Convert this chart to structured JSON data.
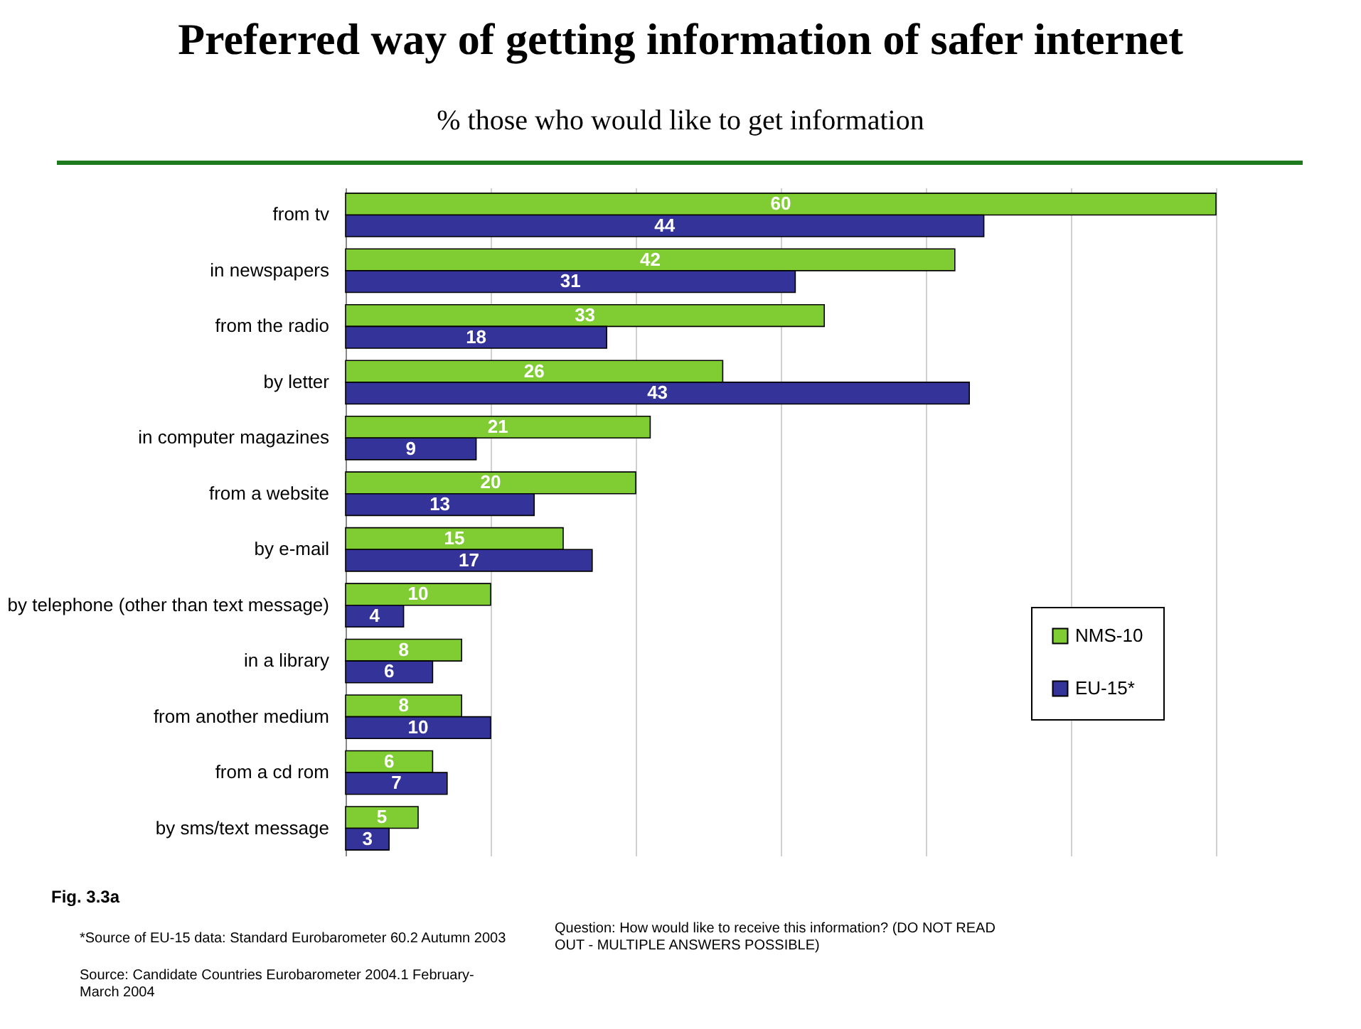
{
  "chart_data": {
    "type": "bar",
    "orientation": "horizontal",
    "title": "Preferred way of getting information of safer internet",
    "subtitle": "% those who would  like to get information",
    "categories": [
      "from tv",
      "in newspapers",
      "from the radio",
      "by letter",
      "in computer magazines",
      "from a website",
      "by e-mail",
      "by telephone (other than text message)",
      "in a library",
      "from another medium",
      "from a cd rom",
      "by sms/text message"
    ],
    "series": [
      {
        "name": "NMS-10",
        "color": "#80cc33",
        "values": [
          60,
          42,
          33,
          26,
          21,
          20,
          15,
          10,
          8,
          8,
          6,
          5
        ]
      },
      {
        "name": "EU-15*",
        "color": "#333399",
        "values": [
          44,
          31,
          18,
          43,
          9,
          13,
          17,
          4,
          6,
          10,
          7,
          3
        ]
      }
    ],
    "xlim": [
      0,
      60
    ],
    "xticks": [
      {
        "value": 0,
        "label": null
      },
      {
        "value": 10,
        "label": null
      },
      {
        "value": 20,
        "label": null
      },
      {
        "value": 30,
        "label": null
      },
      {
        "value": 40,
        "label": null
      },
      {
        "value": 50,
        "label": null
      },
      {
        "value": 60,
        "label": null
      }
    ],
    "grid": "x",
    "tick_labels": "y",
    "legend": "right",
    "data_labels": true,
    "annotations": [
      "Fig. 3.3a",
      "*Source of EU-15 data: Standard Eurobarometer 60.2 Autumn 2003",
      "Source: Candidate Countries Eurobarometer 2004.1 February- March 2004",
      "Question:  How would like to receive this information? (DO NOT READ OUT - MULTIPLE ANSWERS POSSIBLE)"
    ]
  }
}
